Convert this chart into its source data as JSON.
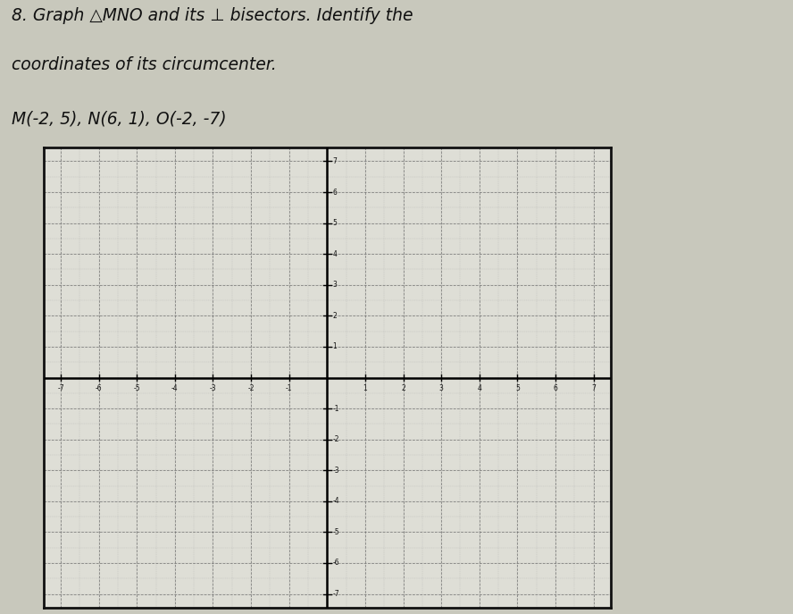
{
  "title_line1": "8. Graph △MNO and its ⊥ bisectors. Identify the",
  "title_line2": "coordinates of its circumcenter.",
  "title_line3": "M(-2, 5), N(6, 1), O(-2, -7)",
  "M": [
    -2,
    5
  ],
  "N": [
    6,
    1
  ],
  "O": [
    -2,
    -7
  ],
  "xmin": -7,
  "xmax": 7,
  "ymin": -7,
  "ymax": 7,
  "grid_color": "#999999",
  "axis_color": "#000000",
  "bg_color": "#c8c8bc",
  "paper_color": "#deded6",
  "border_color": "#111111",
  "text_color": "#111111",
  "tick_labels_x": [
    -7,
    -6,
    -5,
    -4,
    -3,
    -2,
    -1,
    1,
    2,
    3,
    4,
    5,
    6,
    7
  ],
  "tick_labels_y_pos": [
    1,
    2,
    3,
    4,
    5,
    6,
    7
  ],
  "tick_labels_y_neg": [
    -1,
    -2,
    -3,
    -4,
    -5,
    -6,
    -7
  ]
}
